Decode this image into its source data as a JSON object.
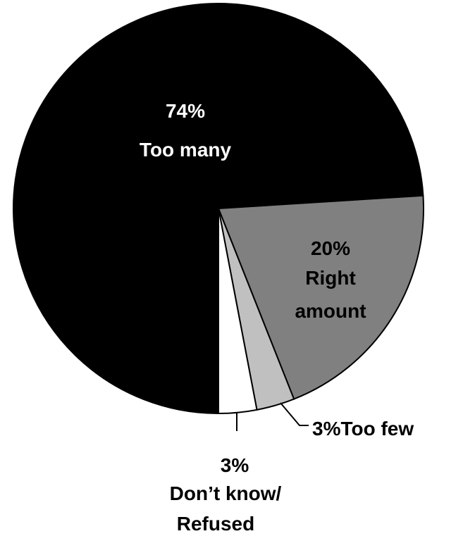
{
  "chart_data": {
    "type": "pie",
    "title": "",
    "slices": [
      {
        "label_value": "74%",
        "label_name": "Too many",
        "value": 74,
        "color": "#000000",
        "text_color": "#ffffff"
      },
      {
        "label_value": "20%",
        "label_name": "Right amount",
        "label_lines": [
          "Right",
          "amount"
        ],
        "value": 20,
        "color": "#808080",
        "text_color": "#000000"
      },
      {
        "label_value": "3%",
        "label_name": "Too few",
        "value": 3,
        "color": "#c0c0c0",
        "text_color": "#000000"
      },
      {
        "label_value": "3%",
        "label_name": "Don’t know/ Refused",
        "label_lines": [
          "Don’t know/",
          "Refused"
        ],
        "value": 3,
        "color": "#ffffff",
        "text_color": "#000000"
      }
    ],
    "legend": "none"
  }
}
